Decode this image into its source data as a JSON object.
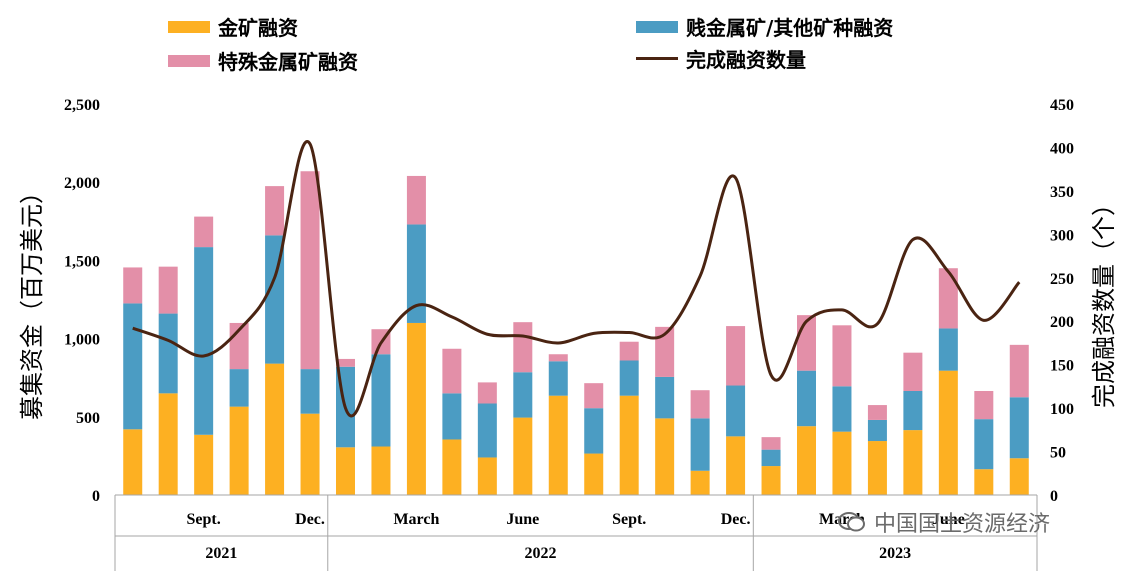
{
  "legend": {
    "gold": "金矿融资",
    "base": "贱金属矿/其他矿种融资",
    "special": "特殊金属矿融资",
    "count": "完成融资数量"
  },
  "colors": {
    "gold": "#FDB022",
    "base": "#4B9CC3",
    "special": "#E38FA8",
    "line": "#4a2412"
  },
  "watermark": "中国国土资源经济",
  "chart_data": {
    "type": "bar",
    "stacked": true,
    "ylabel": "募集资金（百万美元）",
    "y2label": "完成融资数量（个）",
    "ylim": [
      0,
      2500
    ],
    "y2lim": [
      0,
      450
    ],
    "yticks": [
      "0",
      "500",
      "1,000",
      "1,500",
      "2,000",
      "2,500"
    ],
    "y2ticks": [
      "0",
      "50",
      "100",
      "150",
      "200",
      "250",
      "300",
      "350",
      "400",
      "450"
    ],
    "month_labels": [
      {
        "index": 2,
        "label": "Sept."
      },
      {
        "index": 5,
        "label": "Dec."
      },
      {
        "index": 8,
        "label": "March"
      },
      {
        "index": 11,
        "label": "June"
      },
      {
        "index": 14,
        "label": "Sept."
      },
      {
        "index": 17,
        "label": "Dec."
      },
      {
        "index": 20,
        "label": "March"
      },
      {
        "index": 23,
        "label": "June"
      }
    ],
    "years": [
      {
        "label": "2021",
        "start": 0,
        "end": 6
      },
      {
        "label": "2022",
        "start": 6,
        "end": 18
      },
      {
        "label": "2023",
        "start": 18,
        "end": 26
      }
    ],
    "series": [
      {
        "name": "金矿融资",
        "key": "gold",
        "values": [
          420,
          650,
          385,
          565,
          840,
          520,
          305,
          310,
          1100,
          355,
          240,
          495,
          635,
          265,
          635,
          490,
          155,
          375,
          185,
          440,
          405,
          345,
          415,
          795,
          165,
          235
        ]
      },
      {
        "name": "贱金属矿/其他矿种融资",
        "key": "base",
        "values": [
          805,
          510,
          1200,
          240,
          820,
          285,
          515,
          590,
          630,
          295,
          345,
          290,
          220,
          290,
          225,
          265,
          335,
          325,
          105,
          355,
          290,
          135,
          250,
          270,
          320,
          390
        ]
      },
      {
        "name": "特殊金属矿融资",
        "key": "special",
        "values": [
          230,
          300,
          195,
          295,
          315,
          1265,
          50,
          160,
          310,
          285,
          135,
          320,
          45,
          160,
          120,
          320,
          180,
          380,
          80,
          355,
          390,
          95,
          245,
          385,
          180,
          335
        ]
      },
      {
        "name": "完成融资数量",
        "key": "count",
        "type": "line",
        "values": [
          192,
          178,
          160,
          190,
          250,
          404,
          100,
          175,
          218,
          205,
          185,
          183,
          175,
          186,
          187,
          185,
          252,
          365,
          138,
          200,
          213,
          197,
          294,
          257,
          201,
          245
        ]
      }
    ]
  }
}
